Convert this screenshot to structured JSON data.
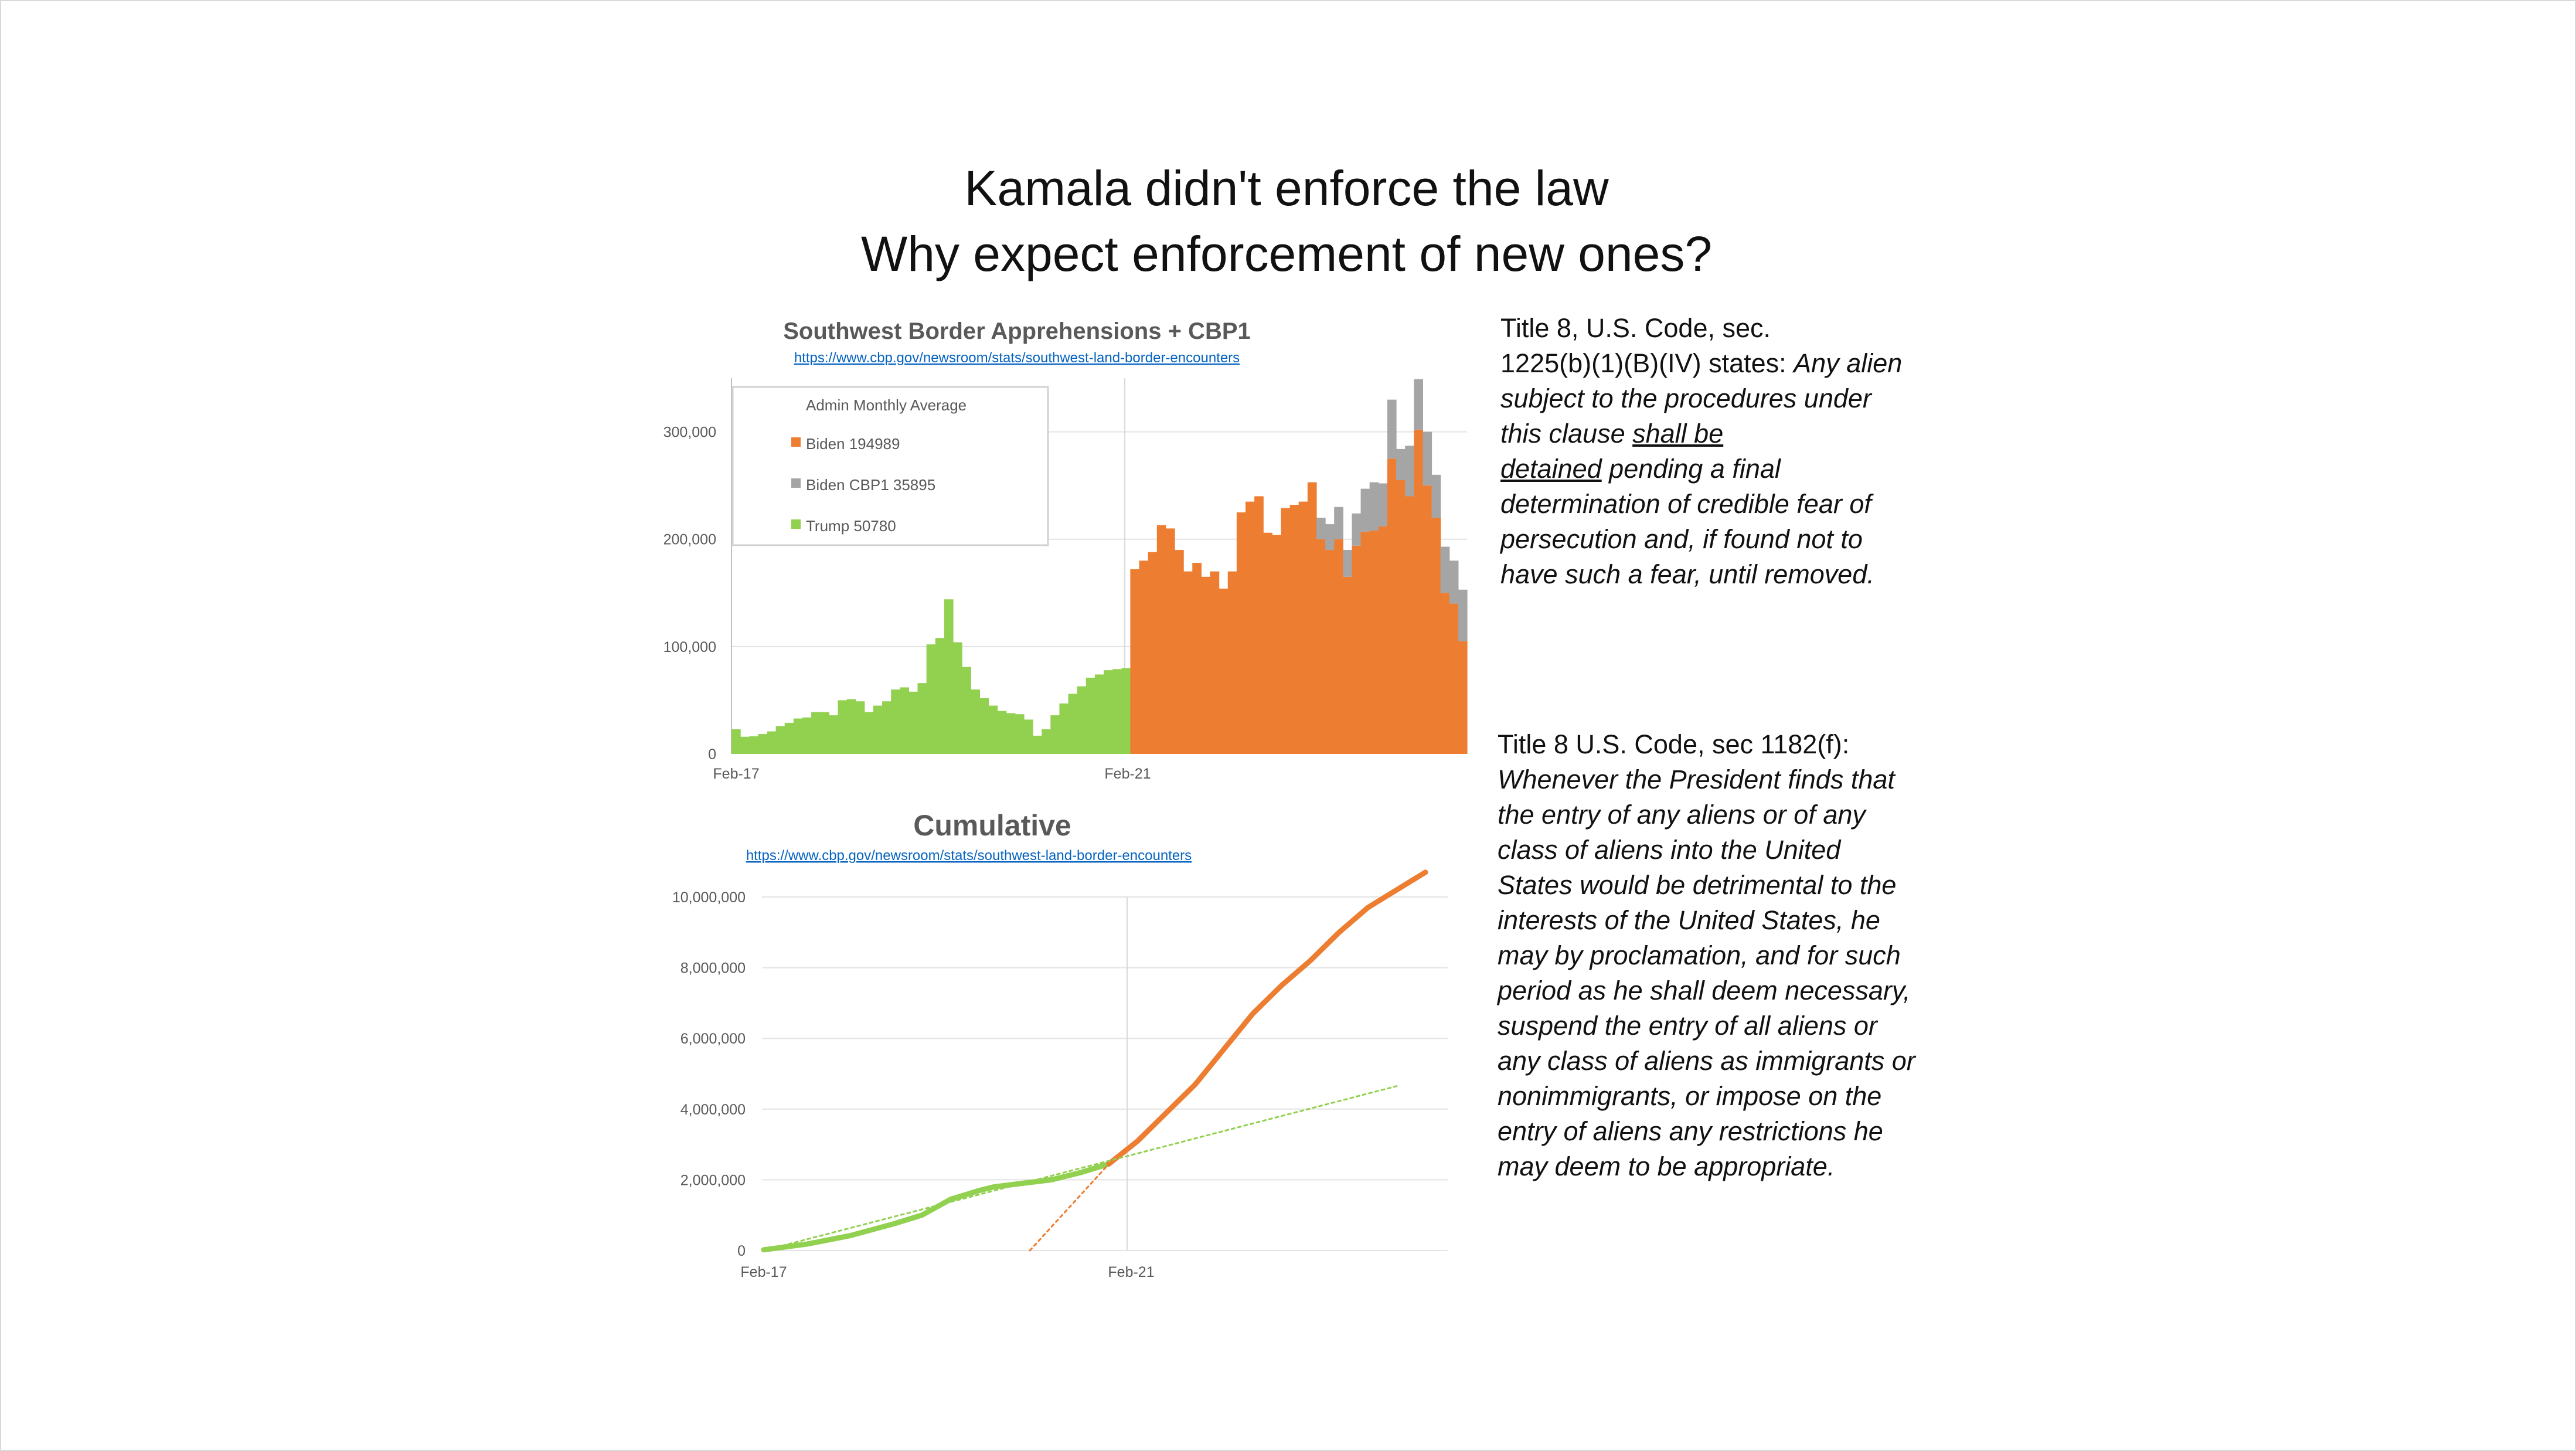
{
  "title": {
    "line1": "Kamala didn't enforce the law",
    "line2": "Why expect enforcement of new ones?"
  },
  "chart_data": [
    {
      "type": "bar",
      "stacked": true,
      "title": "Southwest Border Apprehensions + CBP1",
      "source_url": "https://www.cbp.gov/newsroom/stats/southwest-land-border-encounters",
      "x_tick_labels": [
        "Feb-17",
        "Feb-21"
      ],
      "y_tick_labels": [
        "0",
        "100,000",
        "200,000",
        "300,000"
      ],
      "ylim": [
        0,
        350000
      ],
      "legend": {
        "title": "Admin Monthly Average",
        "placement": "top-left",
        "entries": [
          {
            "label": "Biden 194989",
            "color": "#ed7d31"
          },
          {
            "label": "Biden CBP1 35895",
            "color": "#a5a5a5"
          },
          {
            "label": "Trump 50780",
            "color": "#92d050"
          }
        ]
      },
      "series": [
        {
          "name": "Trump",
          "color": "#92d050",
          "values": [
            23000,
            16000,
            16500,
            18500,
            21000,
            26000,
            29000,
            33000,
            34000,
            39000,
            39000,
            36000,
            50000,
            51000,
            49000,
            39000,
            45000,
            49000,
            60000,
            62000,
            58000,
            66000,
            102000,
            108000,
            144000,
            104000,
            81000,
            60000,
            52000,
            45000,
            40000,
            38000,
            37000,
            32000,
            17000,
            23000,
            36000,
            47000,
            56000,
            63000,
            71000,
            74000,
            78000,
            79000,
            80000
          ]
        },
        {
          "name": "Biden",
          "color": "#ed7d31",
          "values": [
            0,
            0,
            0,
            0,
            0,
            0,
            0,
            0,
            0,
            0,
            0,
            0,
            0,
            0,
            0,
            0,
            0,
            0,
            0,
            0,
            0,
            0,
            0,
            0,
            0,
            0,
            0,
            0,
            0,
            0,
            0,
            0,
            0,
            0,
            0,
            0,
            0,
            0,
            0,
            0,
            0,
            0,
            0,
            0,
            0,
            172000,
            180000,
            188000,
            213000,
            210000,
            190000,
            170000,
            178000,
            165000,
            170000,
            154000,
            170000,
            225000,
            235000,
            240000,
            206000,
            204000,
            229000,
            232000,
            235000,
            253000,
            200000,
            190000,
            200000,
            165000,
            194000,
            207000,
            208000,
            212000,
            275000,
            255000,
            240000,
            302000,
            250000,
            220000,
            150000,
            140000,
            105000
          ]
        },
        {
          "name": "Biden CBP1",
          "color": "#a5a5a5",
          "values": [
            0,
            0,
            0,
            0,
            0,
            0,
            0,
            0,
            0,
            0,
            0,
            0,
            0,
            0,
            0,
            0,
            0,
            0,
            0,
            0,
            0,
            0,
            0,
            0,
            0,
            0,
            0,
            0,
            0,
            0,
            0,
            0,
            0,
            0,
            0,
            0,
            0,
            0,
            0,
            0,
            0,
            0,
            0,
            0,
            0,
            0,
            0,
            0,
            0,
            0,
            0,
            0,
            0,
            0,
            0,
            0,
            0,
            0,
            0,
            0,
            0,
            0,
            0,
            0,
            0,
            0,
            20000,
            24000,
            30000,
            25000,
            30000,
            40000,
            45000,
            40000,
            55000,
            29000,
            47000,
            47000,
            50000,
            40000,
            43000,
            40000,
            48000
          ]
        }
      ]
    },
    {
      "type": "line",
      "title": "Cumulative",
      "source_url": "https://www.cbp.gov/newsroom/stats/southwest-land-border-encounters",
      "x_tick_labels": [
        "Feb-17",
        "Feb-21"
      ],
      "y_tick_labels": [
        "0",
        "2,000,000",
        "4,000,000",
        "6,000,000",
        "8,000,000",
        "10,000,000"
      ],
      "ylim": [
        0,
        10000000
      ],
      "series": [
        {
          "name": "Trump cumulative",
          "color": "#92d050",
          "x": [
            0,
            6,
            12,
            18,
            22,
            26,
            30,
            32,
            36,
            40,
            44,
            48
          ],
          "y": [
            20000,
            180000,
            420000,
            750000,
            1000000,
            1450000,
            1700000,
            1800000,
            1900000,
            2000000,
            2200000,
            2450000
          ]
        },
        {
          "name": "Biden cumulative",
          "color": "#ed7d31",
          "x": [
            48,
            52,
            56,
            60,
            64,
            68,
            72,
            76,
            80,
            84,
            88,
            92
          ],
          "y": [
            2450000,
            3100000,
            3900000,
            4700000,
            5700000,
            6700000,
            7500000,
            8200000,
            9000000,
            9700000,
            10200000,
            10700000
          ]
        },
        {
          "name": "Trump trend",
          "color": "#92d050",
          "dashed": true,
          "x": [
            0,
            88
          ],
          "y": [
            0,
            4650000
          ]
        },
        {
          "name": "Biden trend",
          "color": "#ed7d31",
          "dashed": true,
          "x": [
            37,
            48
          ],
          "y": [
            0,
            2450000
          ]
        }
      ]
    }
  ],
  "law1": {
    "line1": "Title 8, U.S. Code, sec.",
    "line2a": "1225(b)(1)(B)(IV) states: ",
    "line2b": "Any alien",
    "line3": "subject to the procedures under",
    "line4a": "this clause ",
    "line4b": "shall be",
    "line5a": "detained",
    "line5b": " pending a final",
    "line6": "determination of credible fear of",
    "line7": "persecution and, if found not to",
    "line8": "have such a fear, until removed."
  },
  "law2": {
    "heading": "Title 8 U.S. Code, sec 1182(f):",
    "lines": [
      "Whenever the President finds that",
      "the entry of any aliens or of any",
      "class of aliens into the United",
      "States would be detrimental to the",
      "interests of the United States, he",
      "may by proclamation, and for such",
      "period as he shall deem necessary,",
      "suspend the entry of all aliens or",
      "any class of aliens as immigrants or",
      "nonimmigrants, or impose on the",
      "entry of aliens any restrictions he",
      "may deem to be appropriate."
    ]
  }
}
